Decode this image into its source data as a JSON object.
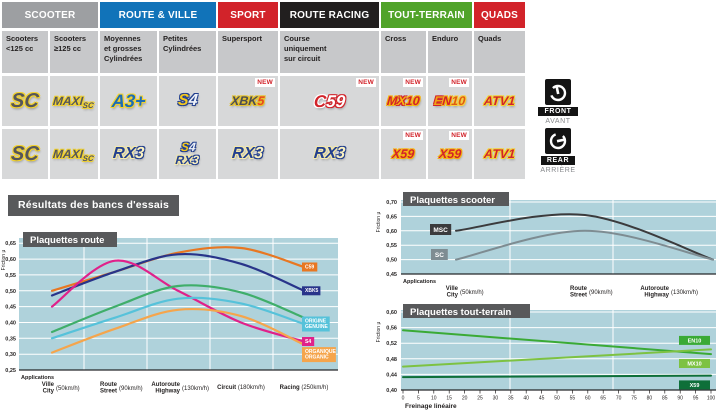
{
  "colors": {
    "plot_bg": "#afd2db",
    "panel": "#58595b",
    "axis": "#26282a",
    "new_red": "#d2232a"
  },
  "table": {
    "new_badge": "NEW",
    "groups": [
      {
        "label": "SCOOTER",
        "color": "#9d9fa2",
        "cols": 2
      },
      {
        "label": "ROUTE & VILLE",
        "color": "#1173b9",
        "cols": 2
      },
      {
        "label": "SPORT",
        "color": "#d2232a",
        "cols": 1
      },
      {
        "label": "ROUTE RACING",
        "color": "#221f1f",
        "cols": 1
      },
      {
        "label": "TOUT-TERRAIN",
        "color": "#50a329",
        "cols": 2
      },
      {
        "label": "QUADS",
        "color": "#d2232a",
        "cols": 1
      }
    ],
    "subheaders": [
      "Scooters\n<125 cc",
      "Scooters\n≥125 cc",
      "Moyennes\net grosses\nCylindrées",
      "Petites\nCylindrées",
      "Supersport",
      "Course\nuniquement\nsur circuit",
      "Cross",
      "Enduro",
      "Quads"
    ],
    "front_row": [
      {
        "name": "SC",
        "cls": "sc",
        "parts": [
          [
            "SC",
            "#55565a",
            "#f2d22e"
          ]
        ]
      },
      {
        "name": "MAXI-SC",
        "cls": "maxisc",
        "parts": [
          [
            "MAXI",
            "#55565a",
            "#f2d22e"
          ],
          [
            "SC",
            "#55565a",
            "#f2d22e",
            "sub"
          ]
        ]
      },
      {
        "name": "A3+",
        "cls": "a3",
        "parts": [
          [
            "A3+",
            "#1d6cb5",
            "#f2d22e"
          ]
        ]
      },
      {
        "name": "S4",
        "cls": "s4",
        "parts": [
          [
            "S",
            "#f5c91f",
            "#23408f"
          ],
          [
            "4",
            "#eef2f8",
            "#23408f"
          ]
        ]
      },
      {
        "name": "XBK5",
        "cls": "xbk5",
        "new": true,
        "parts": [
          [
            "XBK",
            "#4d4e52",
            "#e5c32d"
          ],
          [
            "5",
            "#e8481c",
            "#e5c32d"
          ]
        ]
      },
      {
        "name": "C59",
        "cls": "c59",
        "new": true,
        "parts": [
          [
            "C",
            "#d2232a",
            "#ffffff"
          ],
          [
            "59",
            "#ffffff",
            "#d2232a"
          ]
        ]
      },
      {
        "name": "MX10",
        "cls": "mx10",
        "new": true,
        "parts": [
          [
            "M",
            "#d2232a",
            "#f6b40e"
          ],
          [
            "X",
            "#f6b40e",
            "#d2232a"
          ],
          [
            "10",
            "#d2232a",
            "#f6b40e"
          ]
        ]
      },
      {
        "name": "EN10",
        "cls": "en10",
        "new": true,
        "parts": [
          [
            "E",
            "#f0a312",
            "#d2232a"
          ],
          [
            "N",
            "#d2232a",
            "#f6b40e"
          ],
          [
            "10",
            "#e05c10",
            "#f6d040"
          ]
        ]
      },
      {
        "name": "ATV1",
        "cls": "atv1",
        "parts": [
          [
            "ATV1",
            "#d2232a",
            "#f2d22e"
          ]
        ]
      }
    ],
    "rear_row": [
      {
        "name": "SC",
        "cls": "sc",
        "parts": [
          [
            "SC",
            "#55565a",
            "#f2d22e"
          ]
        ]
      },
      {
        "name": "MAXI-SC",
        "cls": "maxisc",
        "parts": [
          [
            "MAXI",
            "#55565a",
            "#f2d22e"
          ],
          [
            "SC",
            "#55565a",
            "#f2d22e",
            "sub"
          ]
        ]
      },
      {
        "name": "RX3",
        "cls": "rx3",
        "parts": [
          [
            "RX",
            "#23408f",
            "#f5e9a8"
          ],
          [
            "3",
            "#fdf3c0",
            "#23408f"
          ]
        ]
      },
      {
        "name": "S4-RX3",
        "cls": "stack",
        "stack": [
          [
            [
              "S",
              "#f5c91f",
              "#23408f"
            ],
            [
              "4",
              "#eef2f8",
              "#23408f"
            ]
          ],
          [
            [
              "RX",
              "#23408f",
              "#f5e9a8"
            ],
            [
              "3",
              "#fdf3c0",
              "#23408f"
            ]
          ]
        ]
      },
      {
        "name": "RX3",
        "cls": "rx3",
        "parts": [
          [
            "RX",
            "#23408f",
            "#f5e9a8"
          ],
          [
            "3",
            "#fdf3c0",
            "#23408f"
          ]
        ]
      },
      {
        "name": "RX3",
        "cls": "rx3",
        "parts": [
          [
            "RX",
            "#23408f",
            "#f5e9a8"
          ],
          [
            "3",
            "#fdf3c0",
            "#23408f"
          ]
        ]
      },
      {
        "name": "X59",
        "cls": "x59",
        "new": true,
        "parts": [
          [
            "X59",
            "#d2232a",
            "#f6b40e"
          ]
        ]
      },
      {
        "name": "X59",
        "cls": "x59",
        "new": true,
        "parts": [
          [
            "X59",
            "#d2232a",
            "#f6b40e"
          ]
        ]
      },
      {
        "name": "ATV1",
        "cls": "atv1",
        "parts": [
          [
            "ATV1",
            "#d2232a",
            "#f2d22e"
          ]
        ]
      }
    ],
    "front_label": {
      "title": "FRONT",
      "subtitle": "AVANT"
    },
    "rear_label": {
      "title": "REAR",
      "subtitle": "ARRIÈRE"
    }
  },
  "section_title": "Résultats des bancs d'essais",
  "chart_data": [
    {
      "id": "route",
      "type": "line",
      "title": "Plaquettes route",
      "ylabel": "Friction μ",
      "x_caption": "Applications",
      "categories": [
        {
          "name": "Ville",
          "name2": "City",
          "speed": "(50km/h)"
        },
        {
          "name": "Route",
          "name2": "Street",
          "speed": "(90km/h)"
        },
        {
          "name": "Autoroute",
          "name2": "Highway",
          "speed": "(130km/h)"
        },
        {
          "name": "Circuit",
          "speed": "(180km/h)"
        },
        {
          "name": "Racing",
          "speed": "(250km/h)"
        }
      ],
      "yticks": [
        0.65,
        0.6,
        0.55,
        0.5,
        0.45,
        0.4,
        0.35,
        0.3,
        0.25
      ],
      "ylim": [
        0.25,
        0.6665
      ],
      "grid": true,
      "legend_position": "right",
      "series": [
        {
          "name": "C59",
          "color": "#e87722",
          "values": [
            0.5,
            0.56,
            0.62,
            0.635,
            0.575
          ]
        },
        {
          "name": "XBK5",
          "color": "#28348a",
          "values": [
            0.485,
            0.56,
            0.615,
            0.585,
            0.5
          ]
        },
        {
          "name": "S4",
          "color": "#e0218a",
          "values": [
            0.45,
            0.595,
            0.5,
            0.4,
            0.34
          ]
        },
        {
          "name": "A3+",
          "color": "#3fae6a",
          "values": [
            0.37,
            0.45,
            0.515,
            0.495,
            0.415
          ]
        },
        {
          "name": "ORIGINE GENUINE",
          "label": "ORIGINE\nGENUINE",
          "color": "#56c2da",
          "values": [
            0.35,
            0.415,
            0.475,
            0.46,
            0.395
          ]
        },
        {
          "name": "ORGANIQUE ORGANIC",
          "label": "ORGANIQUE\nORGANIC",
          "color": "#f5a54c",
          "values": [
            0.305,
            0.38,
            0.44,
            0.42,
            0.33
          ]
        }
      ]
    },
    {
      "id": "scooter",
      "type": "line",
      "title": "Plaquettes scooter",
      "ylabel": "Friction μ",
      "x_caption": "Applications",
      "categories": [
        {
          "name": "Ville",
          "name2": "City",
          "speed": "(50km/h)"
        },
        {
          "name": "Route",
          "name2": "Street",
          "speed": "(90km/h)"
        },
        {
          "name": "Autoroute",
          "name2": "Highway",
          "speed": "(130km/h)"
        }
      ],
      "yticks": [
        0.7,
        0.65,
        0.6,
        0.55,
        0.5,
        0.45
      ],
      "ylim": [
        0.45,
        0.707
      ],
      "grid": true,
      "legend_position": "left",
      "series": [
        {
          "name": "MSC",
          "color": "#3b3b3d",
          "values": [
            0.6,
            0.655,
            0.5
          ]
        },
        {
          "name": "SC",
          "color": "#7e8c92",
          "values": [
            0.5,
            0.6,
            0.5
          ]
        }
      ]
    },
    {
      "id": "tt",
      "type": "line",
      "title": "Plaquettes tout-terrain",
      "ylabel": "Friction μ",
      "xlabel": "Freinage linéaire",
      "xticks": [
        0,
        5,
        10,
        15,
        20,
        25,
        30,
        35,
        40,
        45,
        50,
        55,
        60,
        65,
        70,
        75,
        80,
        85,
        90,
        95,
        100
      ],
      "xlim": [
        0,
        100
      ],
      "yticks": [
        0.6,
        0.56,
        0.52,
        0.48,
        0.44,
        0.4
      ],
      "ylim": [
        0.4,
        0.605
      ],
      "grid": true,
      "legend_position": "right",
      "series": [
        {
          "name": "EN10",
          "color": "#3aaa35",
          "points": [
            [
              0,
              0.553
            ],
            [
              100,
              0.492
            ]
          ],
          "legend_v": 0.527
        },
        {
          "name": "MX10",
          "color": "#7dc242",
          "points": [
            [
              0,
              0.46
            ],
            [
              100,
              0.504
            ]
          ],
          "legend_v": 0.468
        },
        {
          "name": "X59",
          "color": "#0e6f39",
          "points": [
            [
              0,
              0.433
            ],
            [
              100,
              0.437
            ]
          ],
          "legend_v": 0.413
        }
      ]
    }
  ]
}
